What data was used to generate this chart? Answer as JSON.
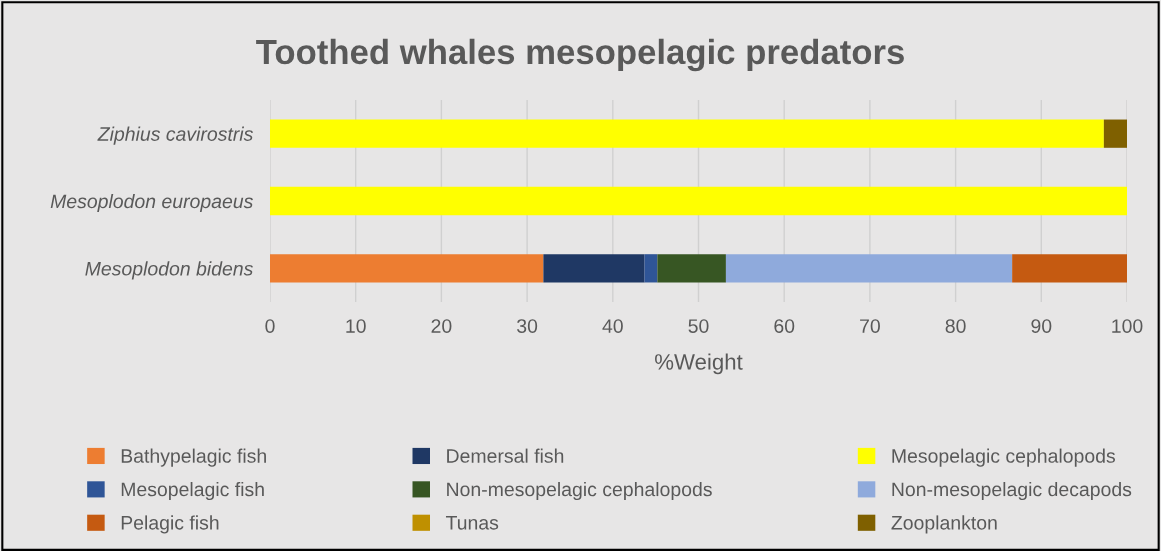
{
  "chart_data": {
    "type": "bar",
    "orientation": "horizontal",
    "stacked": true,
    "title": "Toothed whales mesopelagic predators",
    "xlabel": "%Weight",
    "categories": [
      "Ziphius cavirostris",
      "Mesoplodon europaeus",
      "Mesoplodon bidens"
    ],
    "xlim": [
      0,
      100
    ],
    "xticks": [
      0,
      10,
      20,
      30,
      40,
      50,
      60,
      70,
      80,
      90,
      100
    ],
    "grid": "x",
    "legend": "bottom",
    "series": [
      {
        "name": "Bathypelagic fish",
        "color": "#ed7d31",
        "values": [
          0,
          0,
          31.9
        ]
      },
      {
        "name": "Demersal fish",
        "color": "#1f3864",
        "values": [
          0,
          0,
          11.8
        ]
      },
      {
        "name": "Mesopelagic cephalopods",
        "color": "#ffff00",
        "values": [
          97.3,
          100,
          0
        ]
      },
      {
        "name": "Mesopelagic fish",
        "color": "#2f5597",
        "values": [
          0,
          0,
          1.5
        ]
      },
      {
        "name": "Non-mesopelagic cephalopods",
        "color": "#375623",
        "values": [
          0,
          0,
          8.0
        ]
      },
      {
        "name": "Non-mesopelagic decapods",
        "color": "#8faadc",
        "values": [
          0,
          0,
          33.4
        ]
      },
      {
        "name": "Pelagic fish",
        "color": "#c55a11",
        "values": [
          0,
          0,
          13.4
        ]
      },
      {
        "name": "Tunas",
        "color": "#bf9000",
        "values": [
          0,
          0,
          0
        ]
      },
      {
        "name": "Zooplankton",
        "color": "#7f6000",
        "values": [
          2.7,
          0,
          0
        ]
      }
    ]
  }
}
